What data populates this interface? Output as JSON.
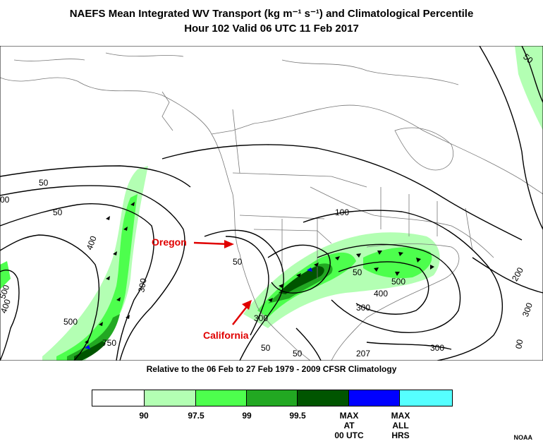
{
  "title_line1": "NAEFS Mean Integrated WV Transport (kg m⁻¹ s⁻¹) and Climatological Percentile",
  "title_line2": "Hour 102 Valid 06 UTC 11 Feb 2017",
  "subtitle": "Relative to the 06 Feb to 27 Feb 1979 - 2009 CFSR Climatology",
  "annotations": {
    "oregon": "Oregon",
    "california": "California"
  },
  "contour_labels": [
    "50",
    "00",
    "50",
    "400",
    "500",
    "400",
    "300",
    "750",
    "500",
    "50",
    "100",
    "50",
    "300",
    "500",
    "400",
    "300",
    "50",
    "50",
    "207",
    "300",
    "200",
    "300",
    "00",
    "50"
  ],
  "legend": {
    "colors": [
      "#ffffff",
      "#b3ffb3",
      "#4dff4d",
      "#22a822",
      "#005500",
      "#0000ff",
      "#55ffff"
    ],
    "labels": [
      "90",
      "97.5",
      "99",
      "99.5",
      "MAX\nAT\n00 UTC",
      "MAX\nALL\nHRS"
    ]
  },
  "credit": "NOAA"
}
